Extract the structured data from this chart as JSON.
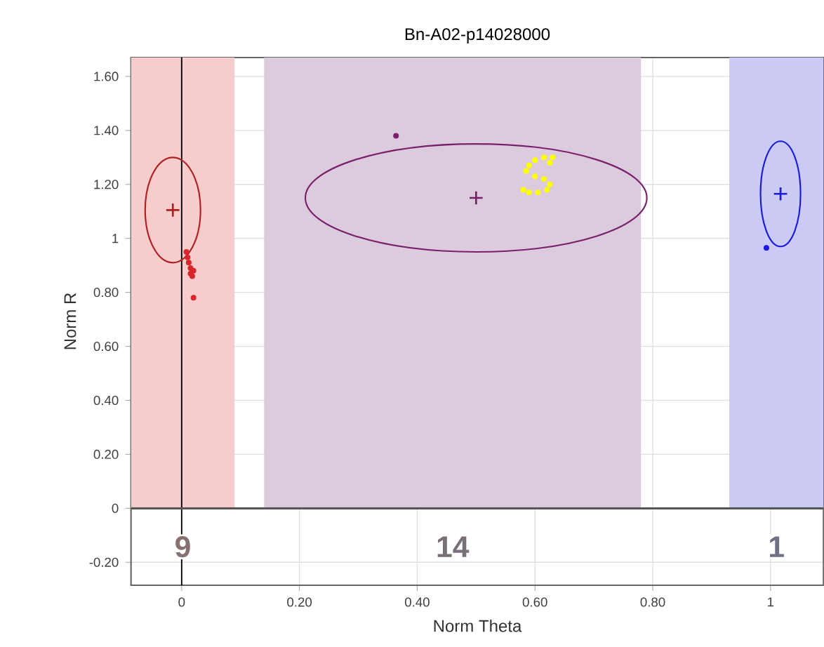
{
  "chart_data": {
    "type": "scatter",
    "title": "Bn-A02-p14028000",
    "xlabel": "Norm Theta",
    "ylabel": "Norm R",
    "xlim": [
      -0.086,
      1.09
    ],
    "ylim": [
      -0.285,
      1.67
    ],
    "xticks": [
      0,
      {
        "value": 0.2,
        "label": "0.20"
      },
      {
        "value": 0.4,
        "label": "0.40"
      },
      {
        "value": 0.6,
        "label": "0.60"
      },
      {
        "value": 0.8,
        "label": "0.80"
      },
      1
    ],
    "yticks": [
      {
        "value": -0.2,
        "label": "-0.20"
      },
      0,
      {
        "value": 0.2,
        "label": "0.20"
      },
      {
        "value": 0.4,
        "label": "0.40"
      },
      {
        "value": 0.6,
        "label": "0.60"
      },
      {
        "value": 0.8,
        "label": "0.80"
      },
      1,
      {
        "value": 1.2,
        "label": "1.20"
      },
      {
        "value": 1.4,
        "label": "1.40"
      },
      {
        "value": 1.6,
        "label": "1.60"
      }
    ],
    "grid": true,
    "bands": [
      {
        "axis": "x",
        "from": -0.086,
        "to": 0.09,
        "color": "#f6cccc"
      },
      {
        "axis": "x",
        "from": 0.14,
        "to": 0.78,
        "color": "#dccbdc"
      },
      {
        "axis": "x",
        "from": 0.93,
        "to": 1.09,
        "color": "#cacaf4"
      }
    ],
    "ref_lines": [
      {
        "axis": "x",
        "value": 0,
        "color": "#000000"
      },
      {
        "axis": "y",
        "value": 0,
        "color": "#555555"
      }
    ],
    "annotations": [
      "9",
      "14",
      "1"
    ],
    "series": [
      {
        "type": "scatter",
        "marker": "circle",
        "color": "#d8262a",
        "x": [
          0.008,
          0.01,
          0.012,
          0.015,
          0.02,
          0.018,
          0.015,
          0.02
        ],
        "values": [
          0.95,
          0.93,
          0.91,
          0.89,
          0.88,
          0.86,
          0.87,
          0.78
        ]
      },
      {
        "type": "scatter",
        "marker": "circle",
        "color": "#7a1f6e",
        "x": [
          0.364
        ],
        "values": [
          1.38
        ]
      },
      {
        "type": "scatter",
        "marker": "circle",
        "color": "#ffff00",
        "x": [
          0.6,
          0.615,
          0.63,
          0.59,
          0.585,
          0.6,
          0.615,
          0.625,
          0.62,
          0.605,
          0.59,
          0.58,
          0.625
        ],
        "values": [
          1.29,
          1.3,
          1.3,
          1.27,
          1.25,
          1.23,
          1.22,
          1.2,
          1.18,
          1.17,
          1.17,
          1.18,
          1.28
        ]
      },
      {
        "type": "scatter",
        "marker": "circle",
        "color": "#1a1adf",
        "x": [
          0.993
        ],
        "values": [
          0.965
        ]
      },
      {
        "type": "scatter",
        "marker": "cross",
        "color": "#b02020",
        "x": [
          -0.015
        ],
        "values": [
          1.105
        ]
      },
      {
        "type": "scatter",
        "marker": "cross",
        "color": "#7a1f6e",
        "x": [
          0.5
        ],
        "values": [
          1.15
        ]
      },
      {
        "type": "scatter",
        "marker": "cross",
        "color": "#1a1adf",
        "x": [
          1.017
        ],
        "values": [
          1.165
        ]
      }
    ]
  }
}
